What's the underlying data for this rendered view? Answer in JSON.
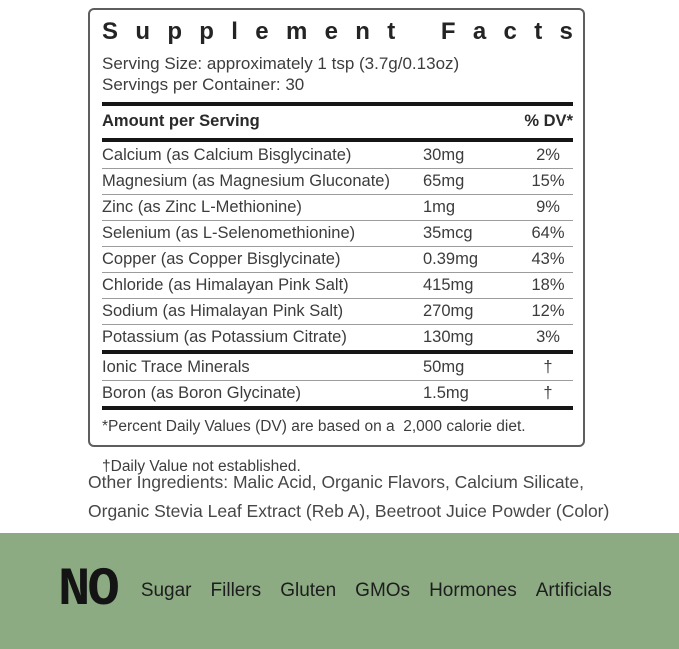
{
  "colors": {
    "banner_green": "#8cab82",
    "thick_rule": "#161616",
    "thin_rule": "#9c9c9c",
    "panel_border": "#5e5e5e"
  },
  "panel": {
    "title": "Supplement Facts",
    "serving_size": "Serving Size: approximately 1 tsp (3.7g/0.13oz)",
    "servings_per_container": "Servings per Container: 30",
    "header": {
      "amount_label": "Amount per Serving",
      "dv_label": "% DV*"
    },
    "rows": [
      {
        "name": "Calcium (as Calcium Bisglycinate)",
        "amount": "30mg",
        "dv": "2%"
      },
      {
        "name": "Magnesium (as Magnesium Gluconate)",
        "amount": "65mg",
        "dv": "15%"
      },
      {
        "name": "Zinc (as Zinc L-Methionine)",
        "amount": "1mg",
        "dv": "9%"
      },
      {
        "name": "Selenium (as L-Selenomethionine)",
        "amount": "35mcg",
        "dv": "64%"
      },
      {
        "name": "Copper (as Copper Bisglycinate)",
        "amount": "0.39mg",
        "dv": "43%"
      },
      {
        "name": "Chloride (as Himalayan Pink Salt)",
        "amount": "415mg",
        "dv": "18%"
      },
      {
        "name": "Sodium (as Himalayan Pink Salt)",
        "amount": "270mg",
        "dv": "12%"
      },
      {
        "name": "Potassium (as Potassium Citrate)",
        "amount": "130mg",
        "dv": "3%"
      }
    ],
    "sub_rows": [
      {
        "name": "Ionic Trace Minerals",
        "amount": "50mg",
        "dv": "†"
      },
      {
        "name": "Boron (as Boron Glycinate)",
        "amount": "1.5mg",
        "dv": "†"
      }
    ],
    "footnote_line1": "*Percent Daily Values (DV) are based on a  2,000 calorie diet.",
    "footnote_line2": "†Daily Value not established."
  },
  "other_ingredients": {
    "line1": "Other Ingredients: Malic Acid, Organic Flavors, Calcium Silicate,",
    "line2": "Organic Stevia Leaf Extract (Reb A), Beetroot Juice Powder (Color)"
  },
  "banner": {
    "no_label": "NO",
    "items": [
      "Sugar",
      "Fillers",
      "Gluten",
      "GMOs",
      "Hormones",
      "Artificials"
    ]
  }
}
